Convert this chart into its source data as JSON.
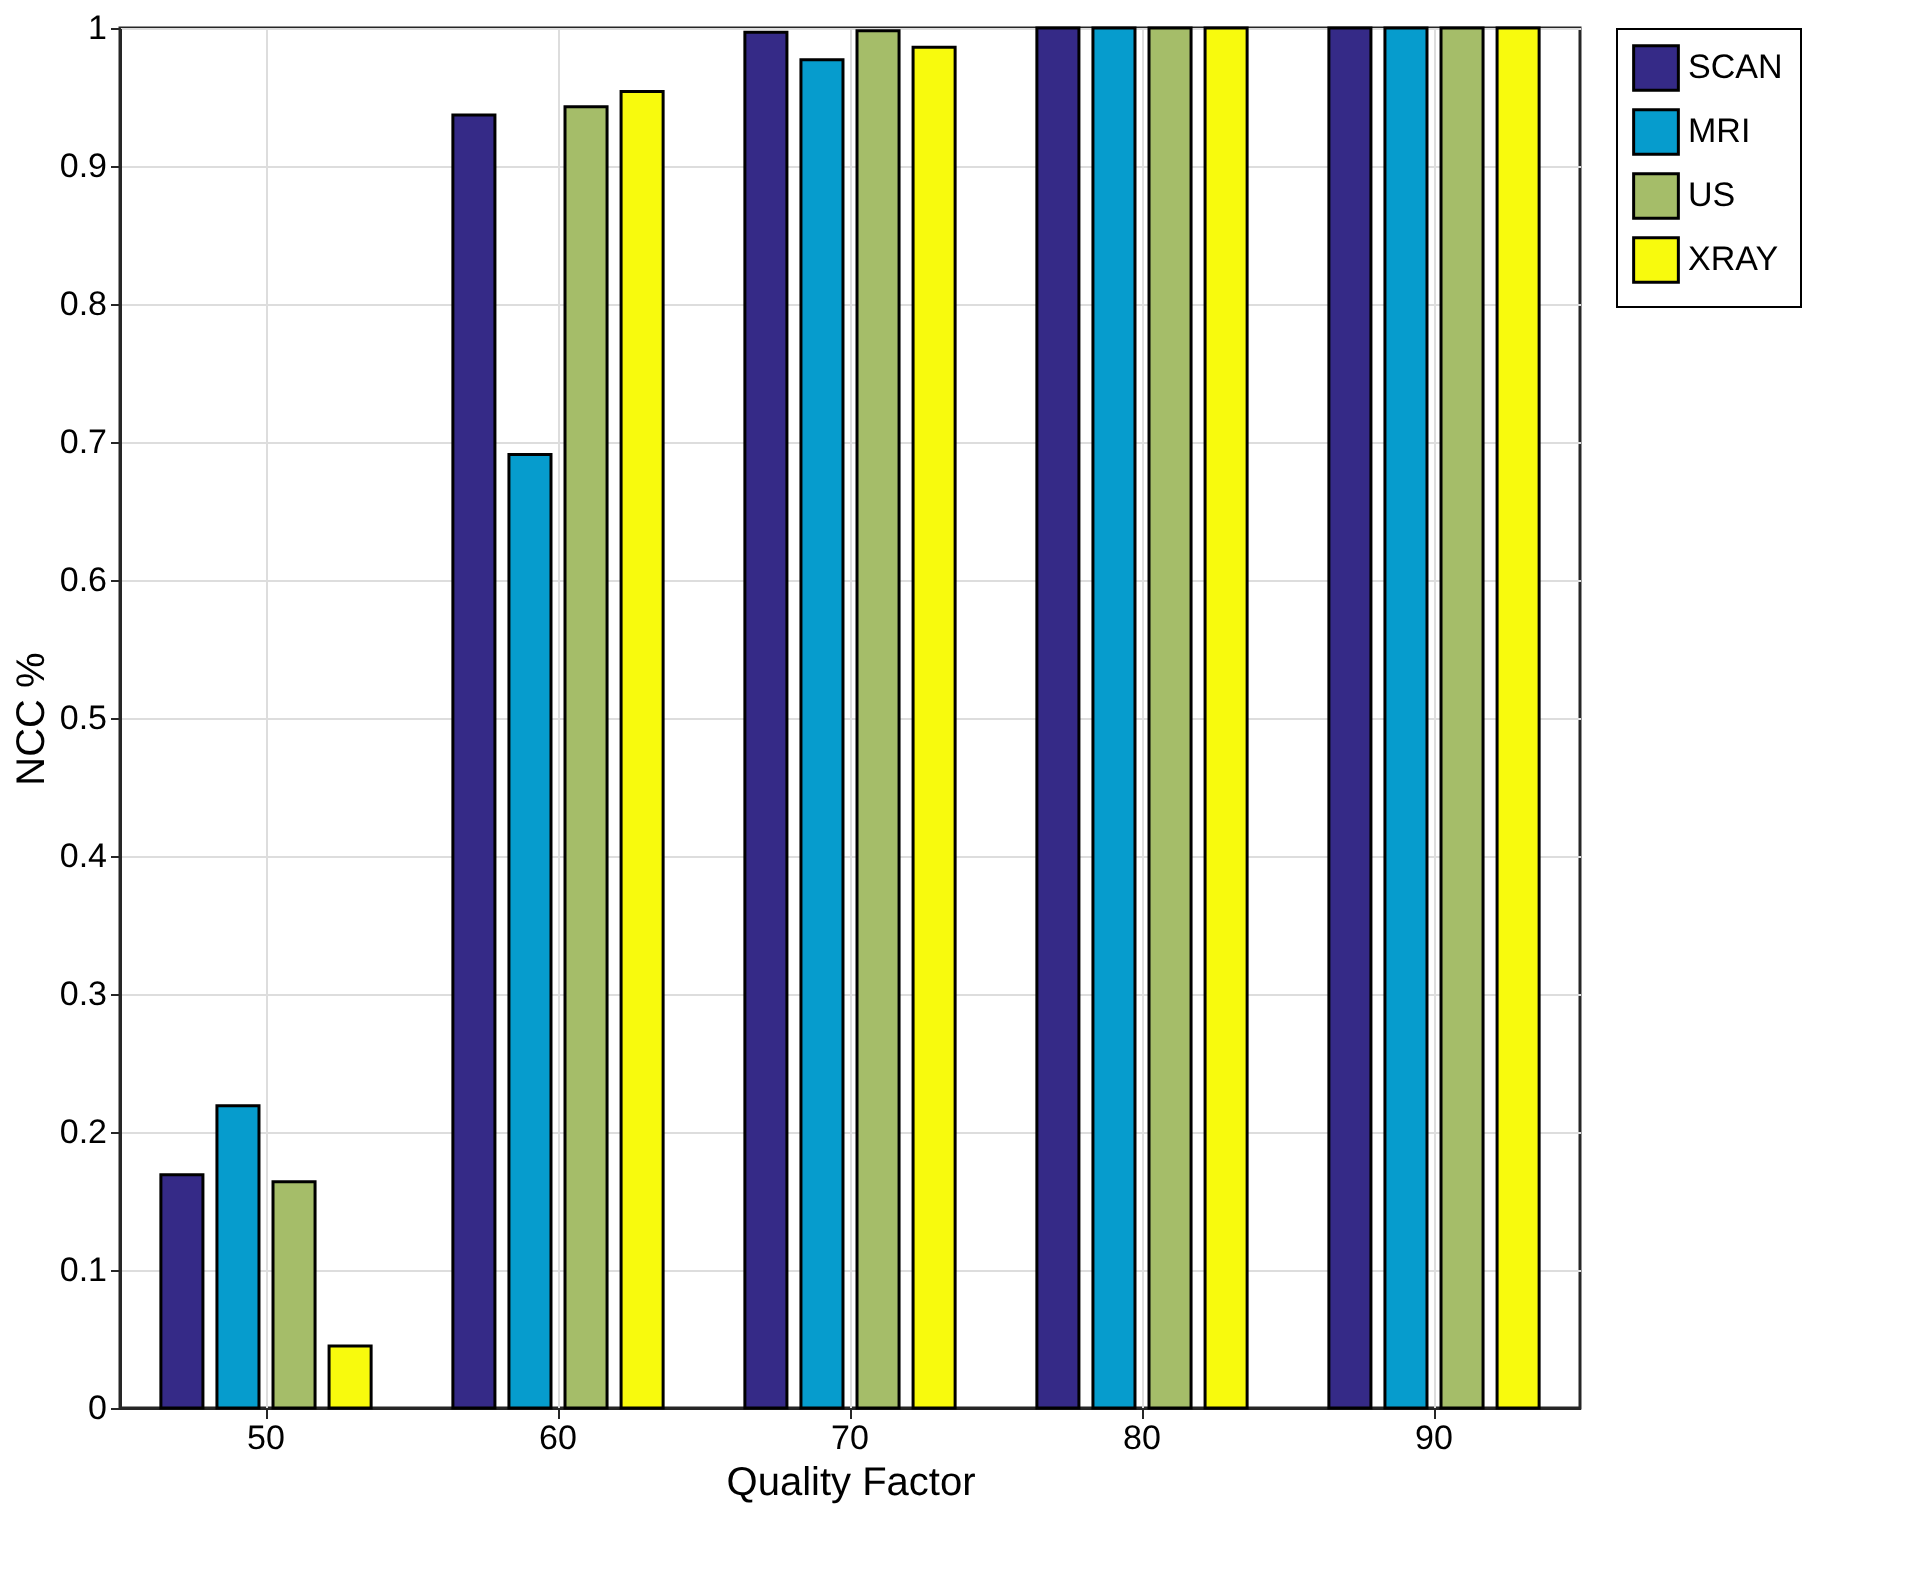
{
  "chart_data": {
    "type": "bar",
    "xlabel": "Quality Factor",
    "ylabel": "NCC %",
    "categories": [
      "50",
      "60",
      "70",
      "80",
      "90"
    ],
    "series": [
      {
        "name": "SCAN",
        "color": "#352a87",
        "values": [
          0.169,
          0.937,
          0.997,
          1,
          1
        ]
      },
      {
        "name": "MRI",
        "color": "#069ccd",
        "values": [
          0.219,
          0.691,
          0.977,
          1,
          1
        ]
      },
      {
        "name": "US",
        "color": "#a5bd69",
        "values": [
          0.164,
          0.943,
          0.998,
          1,
          1
        ]
      },
      {
        "name": "XRAY",
        "color": "#f8fa0d",
        "values": [
          0.045,
          0.954,
          0.986,
          1,
          1
        ]
      }
    ],
    "ylim": [
      0,
      1
    ],
    "yticks": [
      0,
      0.1,
      0.2,
      0.3,
      0.4,
      0.5,
      0.6,
      0.7,
      0.8,
      0.9,
      1
    ],
    "grid": true,
    "legend": "right"
  }
}
